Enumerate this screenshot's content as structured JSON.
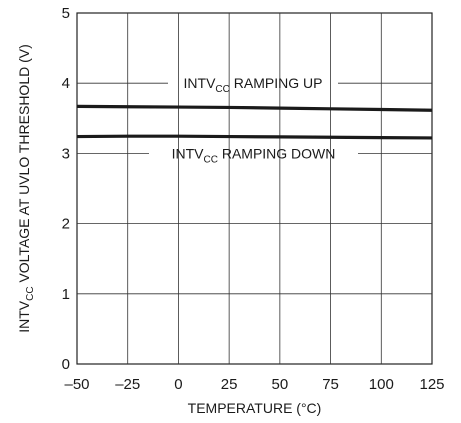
{
  "chart_data": {
    "type": "line",
    "xlabel": "TEMPERATURE (°C)",
    "ylabel": {
      "pre": "INTV",
      "sub": "CC",
      "post": " VOLTAGE AT UVLO THRESHOLD (V)"
    },
    "xlim": [
      -50,
      125
    ],
    "ylim": [
      0,
      5
    ],
    "x_ticks": [
      -50,
      -25,
      0,
      25,
      50,
      75,
      100,
      125
    ],
    "x_tick_labels": [
      "–50",
      "–25",
      "0",
      "25",
      "50",
      "75",
      "100",
      "125"
    ],
    "y_ticks": [
      0,
      1,
      2,
      3,
      4,
      5
    ],
    "y_tick_labels": [
      "0",
      "1",
      "2",
      "3",
      "4",
      "5"
    ],
    "grid": true,
    "series": [
      {
        "name": {
          "pre": "INTV",
          "sub": "CC",
          "post": " RAMPING UP"
        },
        "x": [
          -50,
          -25,
          0,
          25,
          50,
          75,
          100,
          125
        ],
        "y": [
          3.67,
          3.665,
          3.66,
          3.655,
          3.645,
          3.635,
          3.625,
          3.615
        ]
      },
      {
        "name": {
          "pre": "INTV",
          "sub": "CC",
          "post": " RAMPING DOWN"
        },
        "x": [
          -50,
          -25,
          0,
          25,
          50,
          75,
          100,
          125
        ],
        "y": [
          3.24,
          3.245,
          3.245,
          3.24,
          3.235,
          3.23,
          3.225,
          3.22
        ]
      }
    ]
  }
}
